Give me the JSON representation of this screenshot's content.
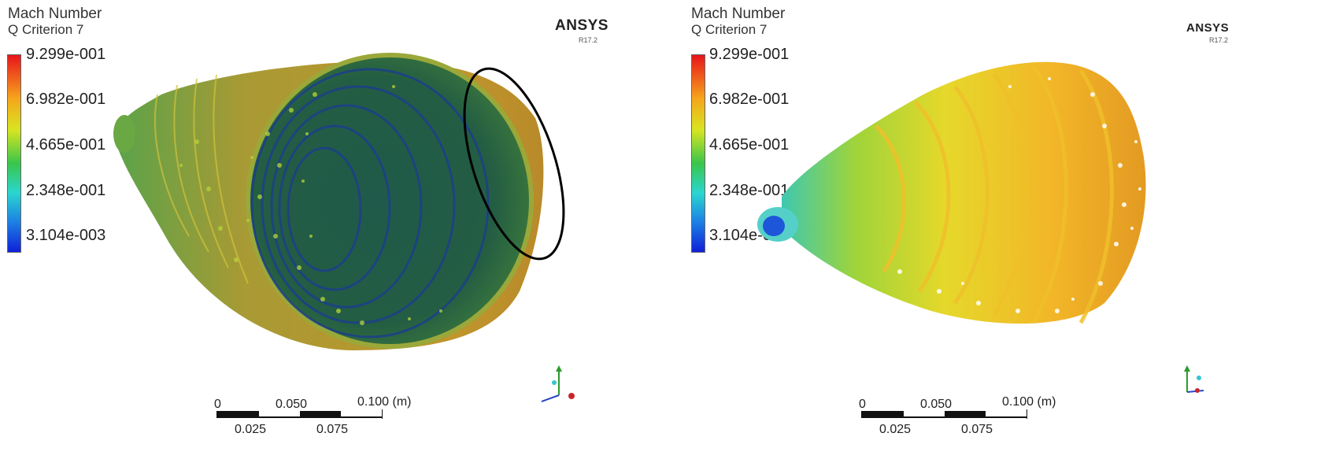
{
  "panels": [
    {
      "variable": "Mach Number",
      "subtitle": "Q Criterion 7",
      "brand": "ANSYS",
      "version": "R17.2",
      "colorbar": {
        "labels": [
          "9.299e-001",
          "6.982e-001",
          "4.665e-001",
          "2.348e-001",
          "3.104e-003"
        ],
        "colors": [
          "#e8141b",
          "#f6a51c",
          "#d8e521",
          "#39c64b",
          "#2ad6cf",
          "#1c7fe4",
          "#1020d8"
        ]
      },
      "scale": {
        "top_labels": [
          "0",
          "0.050",
          "0.100 (m)"
        ],
        "bottom_labels": [
          "0.025",
          "0.075"
        ]
      },
      "highlight": "ellipse"
    },
    {
      "variable": "Mach Number",
      "subtitle": "Q Criterion 7",
      "brand": "ANSYS",
      "version": "R17.2",
      "colorbar": {
        "labels": [
          "9.299e-001",
          "6.982e-001",
          "4.665e-001",
          "2.348e-001",
          "3.104e-003"
        ],
        "colors": [
          "#e8141b",
          "#f6a51c",
          "#d8e521",
          "#39c64b",
          "#2ad6cf",
          "#1c7fe4",
          "#1020d8"
        ]
      },
      "scale": {
        "top_labels": [
          "0",
          "0.050",
          "0.100 (m)"
        ],
        "bottom_labels": [
          "0.025",
          "0.075"
        ]
      }
    }
  ]
}
